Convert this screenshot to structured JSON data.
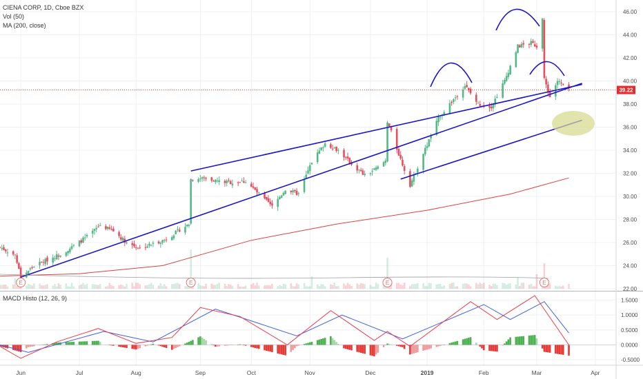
{
  "header": {
    "symbol": "CIENA CORP, 1D, Cboe BZX",
    "vol_label": "Vol (50)",
    "ma_label": "MA (200, close)",
    "macd_label": "MACD Histo (12, 26, 9)"
  },
  "colors": {
    "up": "#53b987",
    "down": "#eb4d5c",
    "trend": "#1a14cc",
    "ma200": "#e0413c",
    "macd": "#3d5ee6",
    "signal": "#f23645",
    "price_tag": "#e52b2b",
    "ellipse": "#d6d98a"
  },
  "chart_data": [
    {
      "type": "candlestick",
      "title": "CIENA CORP, 1D, Cboe BZX",
      "x_tick_labels": [
        "Jun",
        "Jul",
        "Aug",
        "Sep",
        "Oct",
        "Nov",
        "Dec",
        "2019",
        "Feb",
        "Mar",
        "Apr"
      ],
      "y_tick_labels": [
        "22.00",
        "24.00",
        "26.00",
        "28.00",
        "30.00",
        "32.00",
        "34.00",
        "36.00",
        "38.00",
        "40.00",
        "42.00",
        "44.00",
        "46.00"
      ],
      "ylim": [
        22,
        46.5
      ],
      "last_price": "39.22",
      "close_path": [
        {
          "x": "2018-05-21",
          "y": 25.6
        },
        {
          "x": "2018-05-29",
          "y": 24.9
        },
        {
          "x": "2018-06-01",
          "y": 23.0
        },
        {
          "x": "2018-06-08",
          "y": 24.0
        },
        {
          "x": "2018-06-15",
          "y": 24.5
        },
        {
          "x": "2018-06-22",
          "y": 25.0
        },
        {
          "x": "2018-06-29",
          "y": 25.7
        },
        {
          "x": "2018-07-06",
          "y": 26.5
        },
        {
          "x": "2018-07-13",
          "y": 27.5
        },
        {
          "x": "2018-07-20",
          "y": 27.0
        },
        {
          "x": "2018-07-27",
          "y": 26.0
        },
        {
          "x": "2018-08-03",
          "y": 25.5
        },
        {
          "x": "2018-08-10",
          "y": 25.9
        },
        {
          "x": "2018-08-17",
          "y": 26.3
        },
        {
          "x": "2018-08-24",
          "y": 27.1
        },
        {
          "x": "2018-08-29",
          "y": 27.6
        },
        {
          "x": "2018-08-30",
          "y": 31.5
        },
        {
          "x": "2018-09-07",
          "y": 31.6
        },
        {
          "x": "2018-09-14",
          "y": 31.3
        },
        {
          "x": "2018-09-21",
          "y": 31.2
        },
        {
          "x": "2018-09-28",
          "y": 31.3
        },
        {
          "x": "2018-10-05",
          "y": 30.2
        },
        {
          "x": "2018-10-12",
          "y": 29.1
        },
        {
          "x": "2018-10-19",
          "y": 30.6
        },
        {
          "x": "2018-10-26",
          "y": 30.2
        },
        {
          "x": "2018-11-02",
          "y": 33.0
        },
        {
          "x": "2018-11-09",
          "y": 34.6
        },
        {
          "x": "2018-11-16",
          "y": 34.0
        },
        {
          "x": "2018-11-23",
          "y": 32.8
        },
        {
          "x": "2018-11-30",
          "y": 31.8
        },
        {
          "x": "2018-12-07",
          "y": 32.5
        },
        {
          "x": "2018-12-11",
          "y": 33.1
        },
        {
          "x": "2018-12-12",
          "y": 36.5
        },
        {
          "x": "2018-12-19",
          "y": 33.2
        },
        {
          "x": "2018-12-24",
          "y": 31.0
        },
        {
          "x": "2018-12-31",
          "y": 33.7
        },
        {
          "x": "2019-01-08",
          "y": 36.8
        },
        {
          "x": "2019-01-15",
          "y": 38.2
        },
        {
          "x": "2019-01-22",
          "y": 39.6
        },
        {
          "x": "2019-01-29",
          "y": 38.0
        },
        {
          "x": "2019-02-05",
          "y": 37.8
        },
        {
          "x": "2019-02-12",
          "y": 40.0
        },
        {
          "x": "2019-02-19",
          "y": 43.0
        },
        {
          "x": "2019-02-26",
          "y": 43.3
        },
        {
          "x": "2019-03-01",
          "y": 43.0
        },
        {
          "x": "2019-03-04",
          "y": 45.4
        },
        {
          "x": "2019-03-05",
          "y": 40.2
        },
        {
          "x": "2019-03-08",
          "y": 38.6
        },
        {
          "x": "2019-03-12",
          "y": 40.0
        },
        {
          "x": "2019-03-18",
          "y": 39.2
        }
      ],
      "overlays": [
        {
          "name": "MA 200",
          "points": [
            {
              "x": "2018-05-21",
              "y": 23.1
            },
            {
              "x": "2018-07-02",
              "y": 23.3
            },
            {
              "x": "2018-08-15",
              "y": 24.0
            },
            {
              "x": "2018-10-01",
              "y": 26.2
            },
            {
              "x": "2018-11-15",
              "y": 27.6
            },
            {
              "x": "2019-01-02",
              "y": 28.8
            },
            {
              "x": "2019-02-15",
              "y": 30.2
            },
            {
              "x": "2019-03-18",
              "y": 31.6
            }
          ]
        },
        {
          "name": "upper channel",
          "points": [
            {
              "x": "2018-08-30",
              "y": 32.2
            },
            {
              "x": "2019-03-25",
              "y": 39.7
            }
          ]
        },
        {
          "name": "lower channel",
          "points": [
            {
              "x": "2018-06-01",
              "y": 23.0
            },
            {
              "x": "2019-03-25",
              "y": 39.8
            }
          ]
        },
        {
          "name": "parallel channel",
          "points": [
            {
              "x": "2018-12-19",
              "y": 31.5
            },
            {
              "x": "2019-03-25",
              "y": 36.6
            }
          ]
        }
      ]
    },
    {
      "type": "histogram",
      "title": "MACD Histo (12, 26, 9)",
      "y_tick_labels": [
        "1.5000",
        "1.0000",
        "0.5000",
        "0.0000",
        "-0.5000"
      ],
      "ylim": [
        -0.7,
        1.75
      ],
      "macd_path": [
        {
          "x": "2018-05-21",
          "y": -0.05
        },
        {
          "x": "2018-06-01",
          "y": -0.45
        },
        {
          "x": "2018-06-20",
          "y": 0.1
        },
        {
          "x": "2018-07-12",
          "y": 0.55
        },
        {
          "x": "2018-08-01",
          "y": 0.05
        },
        {
          "x": "2018-08-20",
          "y": 0.25
        },
        {
          "x": "2018-09-04",
          "y": 1.25
        },
        {
          "x": "2018-09-25",
          "y": 0.95
        },
        {
          "x": "2018-10-20",
          "y": 0.0
        },
        {
          "x": "2018-11-12",
          "y": 1.15
        },
        {
          "x": "2018-12-05",
          "y": 0.15
        },
        {
          "x": "2018-12-12",
          "y": 0.45
        },
        {
          "x": "2018-12-24",
          "y": -0.05
        },
        {
          "x": "2019-01-25",
          "y": 1.45
        },
        {
          "x": "2019-02-08",
          "y": 0.85
        },
        {
          "x": "2019-02-28",
          "y": 1.65
        },
        {
          "x": "2019-03-18",
          "y": 0.0
        }
      ],
      "signal_path": [
        {
          "x": "2018-05-21",
          "y": 0.0
        },
        {
          "x": "2018-06-05",
          "y": -0.25
        },
        {
          "x": "2018-07-15",
          "y": 0.45
        },
        {
          "x": "2018-08-10",
          "y": 0.1
        },
        {
          "x": "2018-09-12",
          "y": 1.2
        },
        {
          "x": "2018-10-25",
          "y": 0.3
        },
        {
          "x": "2018-11-18",
          "y": 1.0
        },
        {
          "x": "2018-12-20",
          "y": 0.2
        },
        {
          "x": "2019-02-01",
          "y": 1.35
        },
        {
          "x": "2019-02-15",
          "y": 0.85
        },
        {
          "x": "2019-03-05",
          "y": 1.45
        },
        {
          "x": "2019-03-18",
          "y": 0.4
        }
      ]
    }
  ]
}
